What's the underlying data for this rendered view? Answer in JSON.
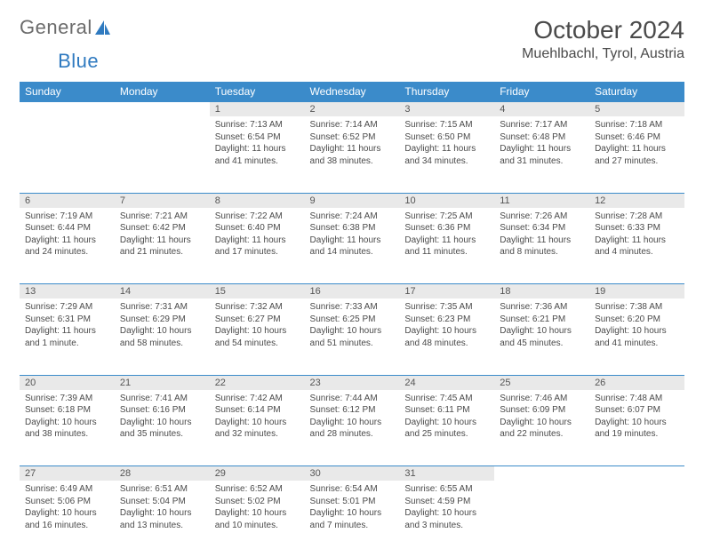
{
  "brand": {
    "part1": "General",
    "part2": "Blue"
  },
  "title": "October 2024",
  "location": "Muehlbachl, Tyrol, Austria",
  "colors": {
    "header_bg": "#3b8bca",
    "header_text": "#ffffff",
    "daynum_bg": "#e9e9e9",
    "rule": "#3b8bca",
    "body_text": "#4a4a4a",
    "brand_gray": "#6b6b6b",
    "brand_blue": "#2f7ac0"
  },
  "day_headers": [
    "Sunday",
    "Monday",
    "Tuesday",
    "Wednesday",
    "Thursday",
    "Friday",
    "Saturday"
  ],
  "weeks": [
    [
      null,
      null,
      {
        "n": "1",
        "sr": "7:13 AM",
        "ss": "6:54 PM",
        "dl": "11 hours and 41 minutes."
      },
      {
        "n": "2",
        "sr": "7:14 AM",
        "ss": "6:52 PM",
        "dl": "11 hours and 38 minutes."
      },
      {
        "n": "3",
        "sr": "7:15 AM",
        "ss": "6:50 PM",
        "dl": "11 hours and 34 minutes."
      },
      {
        "n": "4",
        "sr": "7:17 AM",
        "ss": "6:48 PM",
        "dl": "11 hours and 31 minutes."
      },
      {
        "n": "5",
        "sr": "7:18 AM",
        "ss": "6:46 PM",
        "dl": "11 hours and 27 minutes."
      }
    ],
    [
      {
        "n": "6",
        "sr": "7:19 AM",
        "ss": "6:44 PM",
        "dl": "11 hours and 24 minutes."
      },
      {
        "n": "7",
        "sr": "7:21 AM",
        "ss": "6:42 PM",
        "dl": "11 hours and 21 minutes."
      },
      {
        "n": "8",
        "sr": "7:22 AM",
        "ss": "6:40 PM",
        "dl": "11 hours and 17 minutes."
      },
      {
        "n": "9",
        "sr": "7:24 AM",
        "ss": "6:38 PM",
        "dl": "11 hours and 14 minutes."
      },
      {
        "n": "10",
        "sr": "7:25 AM",
        "ss": "6:36 PM",
        "dl": "11 hours and 11 minutes."
      },
      {
        "n": "11",
        "sr": "7:26 AM",
        "ss": "6:34 PM",
        "dl": "11 hours and 8 minutes."
      },
      {
        "n": "12",
        "sr": "7:28 AM",
        "ss": "6:33 PM",
        "dl": "11 hours and 4 minutes."
      }
    ],
    [
      {
        "n": "13",
        "sr": "7:29 AM",
        "ss": "6:31 PM",
        "dl": "11 hours and 1 minute."
      },
      {
        "n": "14",
        "sr": "7:31 AM",
        "ss": "6:29 PM",
        "dl": "10 hours and 58 minutes."
      },
      {
        "n": "15",
        "sr": "7:32 AM",
        "ss": "6:27 PM",
        "dl": "10 hours and 54 minutes."
      },
      {
        "n": "16",
        "sr": "7:33 AM",
        "ss": "6:25 PM",
        "dl": "10 hours and 51 minutes."
      },
      {
        "n": "17",
        "sr": "7:35 AM",
        "ss": "6:23 PM",
        "dl": "10 hours and 48 minutes."
      },
      {
        "n": "18",
        "sr": "7:36 AM",
        "ss": "6:21 PM",
        "dl": "10 hours and 45 minutes."
      },
      {
        "n": "19",
        "sr": "7:38 AM",
        "ss": "6:20 PM",
        "dl": "10 hours and 41 minutes."
      }
    ],
    [
      {
        "n": "20",
        "sr": "7:39 AM",
        "ss": "6:18 PM",
        "dl": "10 hours and 38 minutes."
      },
      {
        "n": "21",
        "sr": "7:41 AM",
        "ss": "6:16 PM",
        "dl": "10 hours and 35 minutes."
      },
      {
        "n": "22",
        "sr": "7:42 AM",
        "ss": "6:14 PM",
        "dl": "10 hours and 32 minutes."
      },
      {
        "n": "23",
        "sr": "7:44 AM",
        "ss": "6:12 PM",
        "dl": "10 hours and 28 minutes."
      },
      {
        "n": "24",
        "sr": "7:45 AM",
        "ss": "6:11 PM",
        "dl": "10 hours and 25 minutes."
      },
      {
        "n": "25",
        "sr": "7:46 AM",
        "ss": "6:09 PM",
        "dl": "10 hours and 22 minutes."
      },
      {
        "n": "26",
        "sr": "7:48 AM",
        "ss": "6:07 PM",
        "dl": "10 hours and 19 minutes."
      }
    ],
    [
      {
        "n": "27",
        "sr": "6:49 AM",
        "ss": "5:06 PM",
        "dl": "10 hours and 16 minutes."
      },
      {
        "n": "28",
        "sr": "6:51 AM",
        "ss": "5:04 PM",
        "dl": "10 hours and 13 minutes."
      },
      {
        "n": "29",
        "sr": "6:52 AM",
        "ss": "5:02 PM",
        "dl": "10 hours and 10 minutes."
      },
      {
        "n": "30",
        "sr": "6:54 AM",
        "ss": "5:01 PM",
        "dl": "10 hours and 7 minutes."
      },
      {
        "n": "31",
        "sr": "6:55 AM",
        "ss": "4:59 PM",
        "dl": "10 hours and 3 minutes."
      },
      null,
      null
    ]
  ],
  "labels": {
    "sunrise": "Sunrise:",
    "sunset": "Sunset:",
    "daylight": "Daylight:"
  }
}
